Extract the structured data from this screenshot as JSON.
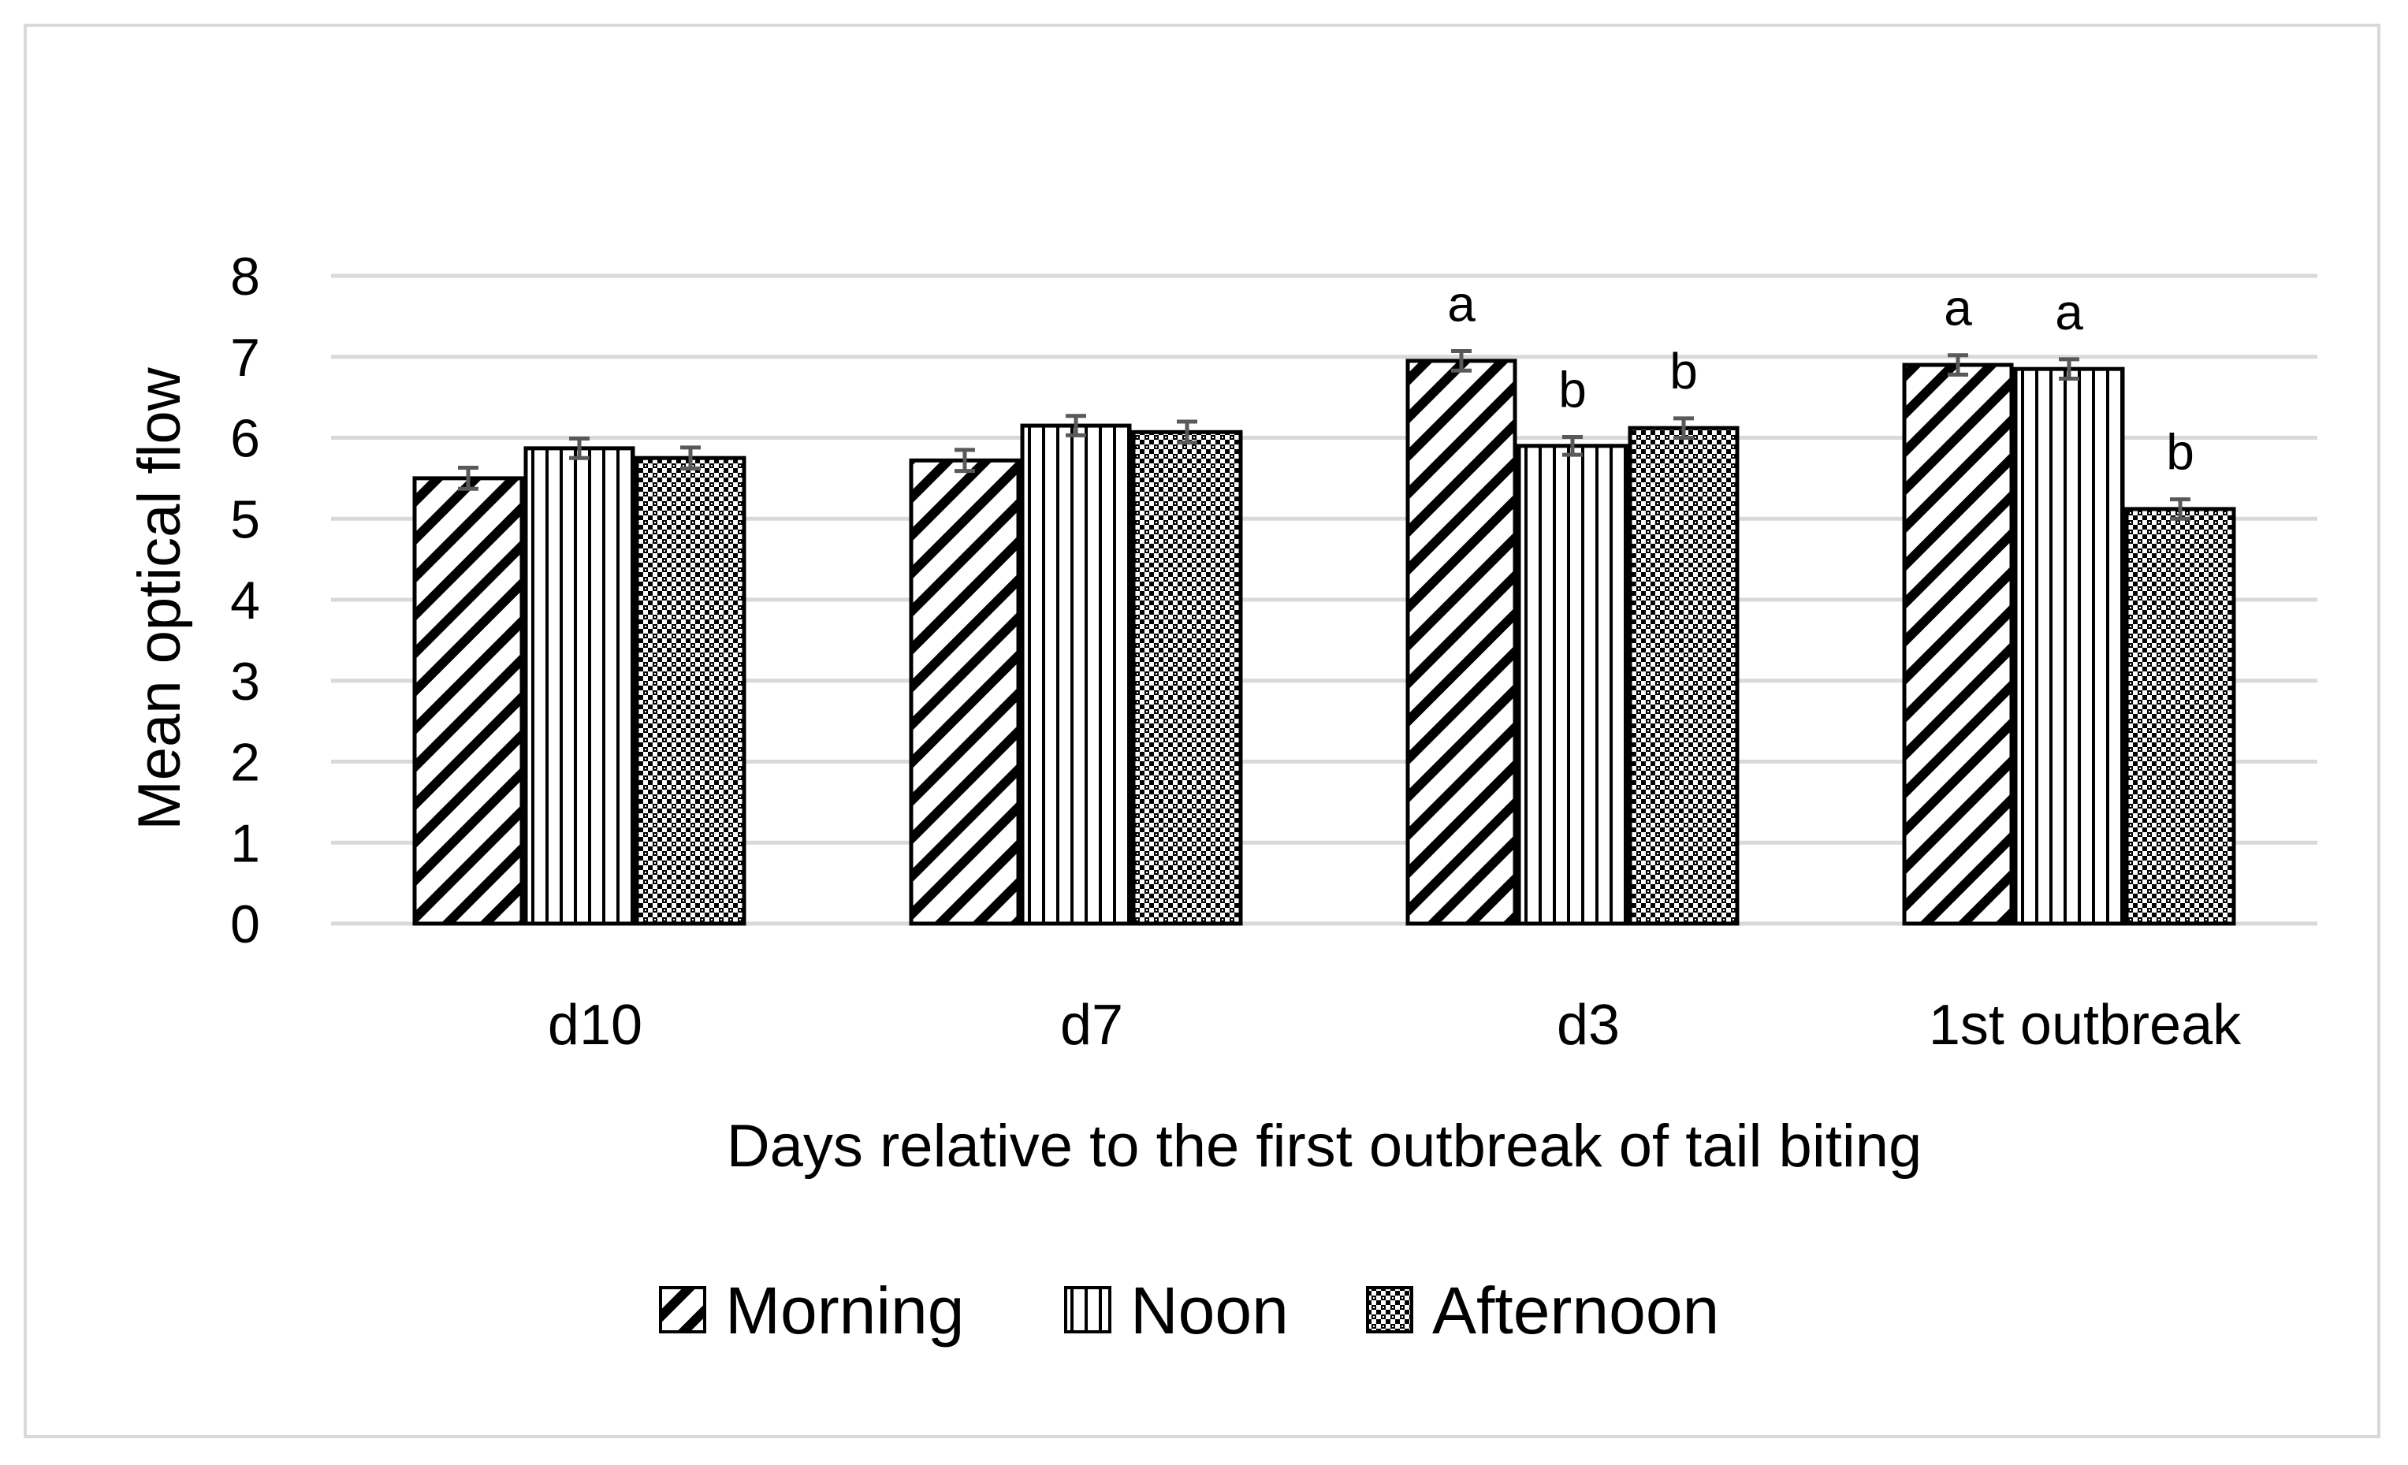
{
  "chart_data": {
    "type": "bar",
    "title": "",
    "xlabel": "Days relative to the first outbreak of tail biting",
    "ylabel": "Mean optical flow",
    "ylim": [
      0,
      8
    ],
    "yticks": [
      "0",
      "1",
      "2",
      "3",
      "4",
      "5",
      "6",
      "7",
      "8"
    ],
    "grid": true,
    "legend_position": "bottom",
    "categories": [
      "d10",
      "d7",
      "d3",
      "1st outbreak"
    ],
    "series": [
      {
        "name": "Morning",
        "pattern": "diagonal-hatch",
        "values": [
          5.5,
          5.72,
          6.95,
          6.9
        ],
        "errors": [
          0.13,
          0.13,
          0.12,
          0.12
        ],
        "letters": [
          "",
          "",
          "a",
          "a"
        ]
      },
      {
        "name": "Noon",
        "pattern": "vertical-lines",
        "values": [
          5.87,
          6.15,
          5.9,
          6.85
        ],
        "errors": [
          0.12,
          0.12,
          0.11,
          0.12
        ],
        "letters": [
          "",
          "",
          "b",
          "a"
        ]
      },
      {
        "name": "Afternoon",
        "pattern": "dotted-checker",
        "values": [
          5.75,
          6.07,
          6.12,
          5.12
        ],
        "errors": [
          0.13,
          0.13,
          0.12,
          0.12
        ],
        "letters": [
          "",
          "",
          "b",
          "b"
        ]
      }
    ],
    "colors": {
      "bar_outline": "#000000",
      "grid": "#d9d9d9",
      "error_bar": "#595959",
      "frame": "#d9d9d9"
    }
  }
}
